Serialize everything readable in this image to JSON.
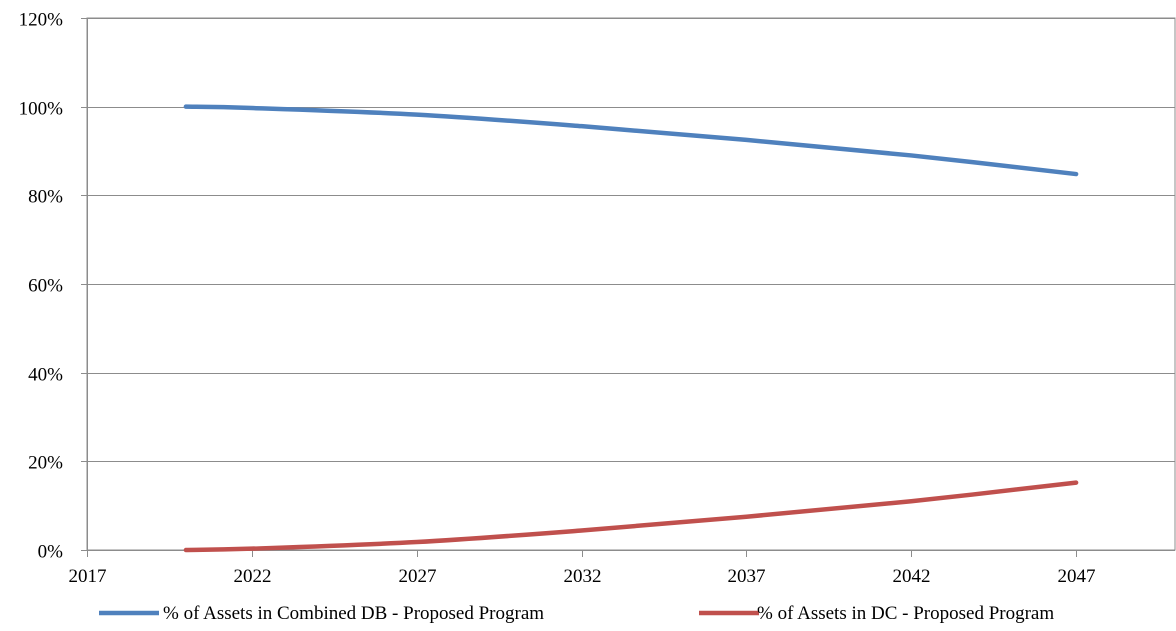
{
  "chart_data": {
    "type": "line",
    "title": "",
    "xlabel": "",
    "ylabel": "",
    "xlim": [
      2017,
      2050
    ],
    "ylim": [
      0,
      1.2
    ],
    "x_ticks": [
      2017,
      2022,
      2027,
      2032,
      2037,
      2042,
      2047
    ],
    "x_tick_labels": [
      "2017",
      "2022",
      "2027",
      "2032",
      "2037",
      "2042",
      "2047"
    ],
    "y_ticks": [
      0,
      0.2,
      0.4,
      0.6,
      0.8,
      1.0,
      1.2
    ],
    "y_tick_labels": [
      "0%",
      "20%",
      "40%",
      "60%",
      "80%",
      "100%",
      "120%"
    ],
    "grid": "horizontal",
    "legend_position": "bottom",
    "x": [
      2020,
      2022,
      2027,
      2032,
      2037,
      2042,
      2047
    ],
    "series": [
      {
        "name": "% of Assets in Combined DB - Proposed Program",
        "color": "#4f81bd",
        "values": [
          1.0,
          0.997,
          0.982,
          0.956,
          0.925,
          0.89,
          0.848
        ]
      },
      {
        "name": "% of Assets in DC - Proposed Program",
        "color": "#c0504d",
        "values": [
          0.0,
          0.003,
          0.018,
          0.044,
          0.075,
          0.11,
          0.152
        ]
      }
    ]
  }
}
